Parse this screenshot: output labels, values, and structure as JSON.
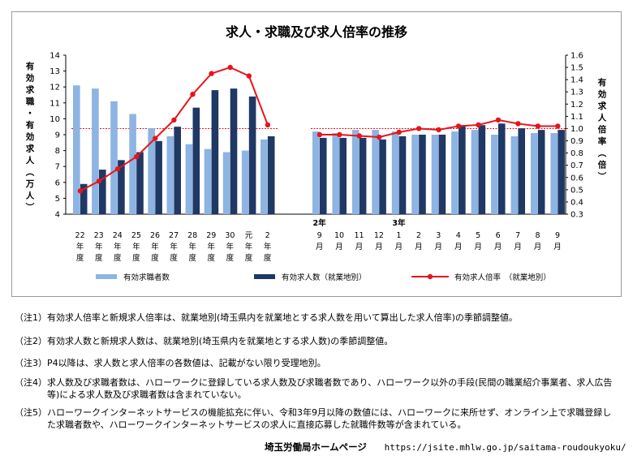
{
  "chart_data": {
    "type": "bar+line",
    "title": "求人・求職及び求人倍率の推移",
    "ylabel_left": "有効求職・有効求人（万人）",
    "ylabel_right": "有効求人倍率（倍）",
    "ylim_left": [
      4,
      14
    ],
    "ylim_right": [
      0.3,
      1.6
    ],
    "yticks_left": [
      "4",
      "5",
      "6",
      "7",
      "8",
      "9",
      "10",
      "11",
      "12",
      "13",
      "14"
    ],
    "yticks_right": [
      "0.3",
      "0.4",
      "0.5",
      "0.6",
      "0.7",
      "0.8",
      "0.9",
      "1.0",
      "1.1",
      "1.2",
      "1.3",
      "1.4",
      "1.5",
      "1.6"
    ],
    "reference_line_right": 1.0,
    "groups": [
      {
        "categories": [
          {
            "label": "22年度"
          },
          {
            "label": "23年度"
          },
          {
            "label": "24年度"
          },
          {
            "label": "25年度"
          },
          {
            "label": "26年度"
          },
          {
            "label": "27年度"
          },
          {
            "label": "28年度"
          },
          {
            "label": "29年度"
          },
          {
            "label": "30年度"
          },
          {
            "label": "元年度"
          },
          {
            "label": "2年度"
          }
        ],
        "seekers": [
          12.1,
          11.9,
          11.1,
          10.3,
          9.4,
          8.9,
          8.4,
          8.1,
          7.9,
          8.0,
          8.7
        ],
        "openings": [
          5.9,
          6.8,
          7.4,
          7.9,
          8.6,
          9.5,
          10.7,
          11.8,
          11.9,
          11.4,
          8.9
        ],
        "ratio": [
          0.49,
          0.57,
          0.67,
          0.77,
          0.92,
          1.07,
          1.28,
          1.45,
          1.5,
          1.43,
          1.03
        ]
      },
      {
        "categories": [
          {
            "label": "9月",
            "year": "2年"
          },
          {
            "label": "10月"
          },
          {
            "label": "11月"
          },
          {
            "label": "12月"
          },
          {
            "label": "1月",
            "year": "3年"
          },
          {
            "label": "2月"
          },
          {
            "label": "3月"
          },
          {
            "label": "4月"
          },
          {
            "label": "5月"
          },
          {
            "label": "6月"
          },
          {
            "label": "7月"
          },
          {
            "label": "8月"
          },
          {
            "label": "9月"
          }
        ],
        "seekers": [
          9.2,
          9.1,
          9.3,
          9.3,
          9.2,
          9.0,
          9.0,
          9.2,
          9.3,
          9.0,
          8.9,
          9.1,
          9.1
        ],
        "openings": [
          8.8,
          8.8,
          8.8,
          8.7,
          8.9,
          9.0,
          9.0,
          9.6,
          9.6,
          9.7,
          9.4,
          9.3,
          9.3
        ],
        "ratio": [
          0.95,
          0.95,
          0.94,
          0.93,
          0.97,
          1.0,
          0.99,
          1.02,
          1.03,
          1.07,
          1.04,
          1.02,
          1.02
        ]
      }
    ],
    "series": [
      {
        "name": "有効求職者数",
        "color": "#8db4e2"
      },
      {
        "name": "有効求人数（就業地別）",
        "color": "#1f3864"
      },
      {
        "name": "有効求人倍率　（就業地別）",
        "color": "#e8141b"
      }
    ],
    "legend_position": "bottom",
    "grid": false,
    "reference_line_color": "#e8141b"
  },
  "notes": [
    {
      "tag": "（注1）",
      "text": "有効求人倍率と新規求人倍率は、就業地別(埼玉県内を就業地とする求人数を用いて算出した求人倍率)の季節調整値。"
    },
    {
      "tag": "（注2）",
      "text": "有効求人数と新規求人数は、就業地別(埼玉県内を就業地とする求人数)の季節調整値。"
    },
    {
      "tag": "（注3）",
      "text": "P4以降は、求人数と求人倍率の各数値は、記載がない限り受理地別。"
    },
    {
      "tag": "（注4）",
      "text": "求人数及び求職者数は、ハローワークに登録している求人数及び求職者数であり、ハローワーク以外の手段(民間の職業紹介事業者、求人広告等)による求人数及び求職者数は含まれていない。"
    },
    {
      "tag": "（注5）",
      "text": "ハローワークインターネットサービスの機能拡充に伴い、令和3年9月以降の数値には、ハローワークに来所せず、オンライン上で求職登録した求職者数や、ハローワークインターネットサービスの求人に直接応募した就職件数等が含まれている。"
    }
  ],
  "footer": {
    "org": "埼玉労働局ホームページ",
    "url": "https://jsite.mhlw.go.jp/saitama-roudoukyoku/"
  }
}
